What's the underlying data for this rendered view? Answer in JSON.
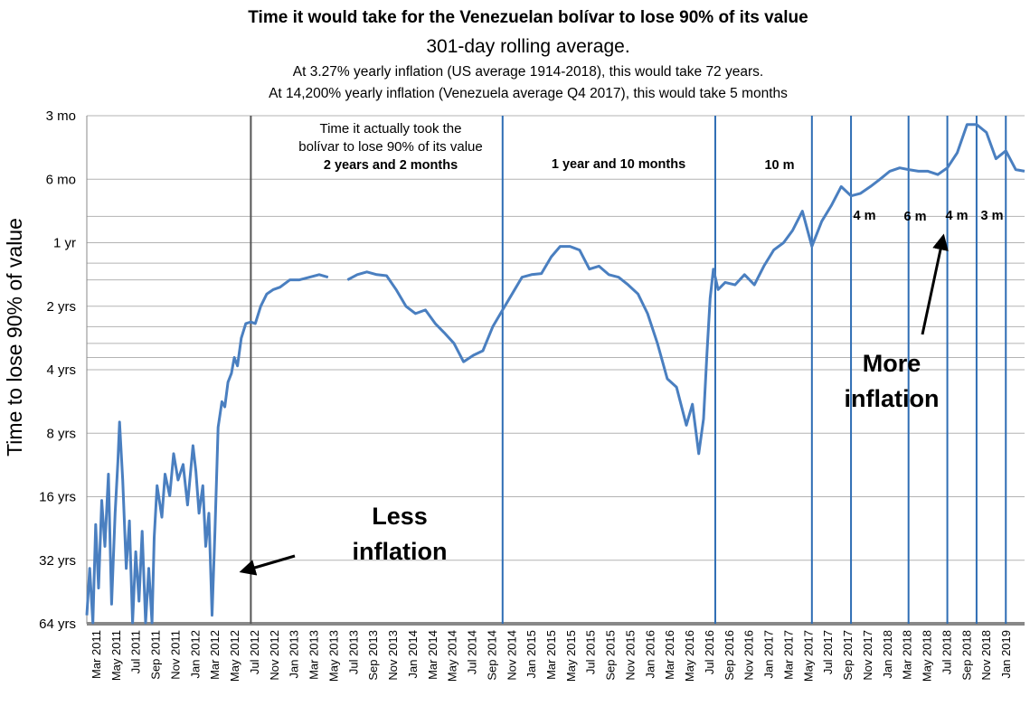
{
  "colors": {
    "series": "#4a7fc0",
    "period_line": "#2e6db4",
    "grid": "#b3b3b3",
    "text": "#000000"
  },
  "chart_data": {
    "type": "line",
    "title": "Time it would take for the Venezuelan bolívar to lose 90% of its value",
    "subtitle": "301-day rolling average.",
    "notes": [
      "At 3.27% yearly inflation (US average 1914-2018), this would take 72 years.",
      "At 14,200% yearly inflation (Venezuela average Q4 2017), this would take 5 months"
    ],
    "ylabel": "Time to lose 90% of value",
    "xlabel": "",
    "y_scale": "log",
    "y_unit": "months",
    "y_inverted": true,
    "ylim": [
      768,
      3
    ],
    "y_ticks": [
      {
        "label": "3 mo",
        "value": 3
      },
      {
        "label": "6 mo",
        "value": 6
      },
      {
        "label": "1 yr",
        "value": 12
      },
      {
        "label": "2 yrs",
        "value": 24
      },
      {
        "label": "4 yrs",
        "value": 48
      },
      {
        "label": "8 yrs",
        "value": 96
      },
      {
        "label": "16 yrs",
        "value": 192
      },
      {
        "label": "32 yrs",
        "value": 384
      },
      {
        "label": "64 yrs",
        "value": 768
      }
    ],
    "y_gridlines": [
      3,
      6,
      9,
      12,
      15,
      18,
      24,
      30,
      36,
      42,
      48,
      96,
      192,
      384,
      768
    ],
    "x_ticks": [
      "Mar 2011",
      "May 2011",
      "Jul 2011",
      "Sep 2011",
      "Nov 2011",
      "Jan 2012",
      "Mar 2012",
      "May 2012",
      "Jul 2012",
      "Nov 2012",
      "Jan 2013",
      "Mar 2013",
      "May 2013",
      "Jul 2013",
      "Sep 2013",
      "Nov 2013",
      "Jan 2014",
      "Mar 2014",
      "May 2014",
      "Jul 2014",
      "Sep 2014",
      "Nov 2014",
      "Jan 2015",
      "Mar 2015",
      "May 2015",
      "Jul 2015",
      "Sep 2015",
      "Nov 2015",
      "Jan 2016",
      "Mar 2016",
      "May 2016",
      "Jul 2016",
      "Sep 2016",
      "Nov 2016",
      "Jan 2017",
      "Mar 2017",
      "May 2017",
      "Jul 2017",
      "Sep 2017",
      "Nov 2017",
      "Jan 2018",
      "Mar 2018",
      "May 2018",
      "Jul 2018",
      "Sep 2018",
      "Nov 2018",
      "Jan 2019"
    ],
    "x_range": [
      "2011-02-01",
      "2019-03-01"
    ],
    "series": [
      {
        "values": [
          [
            "2011-02-01",
            700
          ],
          [
            "2011-02-10",
            420
          ],
          [
            "2011-02-20",
            760
          ],
          [
            "2011-03-01",
            260
          ],
          [
            "2011-03-10",
            520
          ],
          [
            "2011-03-20",
            200
          ],
          [
            "2011-03-30",
            330
          ],
          [
            "2011-04-10",
            150
          ],
          [
            "2011-04-20",
            620
          ],
          [
            "2011-05-01",
            230
          ],
          [
            "2011-05-10",
            130
          ],
          [
            "2011-05-15",
            85
          ],
          [
            "2011-05-25",
            160
          ],
          [
            "2011-06-05",
            420
          ],
          [
            "2011-06-15",
            250
          ],
          [
            "2011-06-25",
            760
          ],
          [
            "2011-07-05",
            350
          ],
          [
            "2011-07-15",
            600
          ],
          [
            "2011-07-25",
            280
          ],
          [
            "2011-08-05",
            760
          ],
          [
            "2011-08-15",
            420
          ],
          [
            "2011-08-25",
            760
          ],
          [
            "2011-09-01",
            300
          ],
          [
            "2011-09-10",
            170
          ],
          [
            "2011-09-25",
            240
          ],
          [
            "2011-10-05",
            150
          ],
          [
            "2011-10-20",
            190
          ],
          [
            "2011-11-01",
            120
          ],
          [
            "2011-11-15",
            160
          ],
          [
            "2011-12-01",
            135
          ],
          [
            "2011-12-15",
            210
          ],
          [
            "2012-01-01",
            110
          ],
          [
            "2012-01-10",
            145
          ],
          [
            "2012-01-20",
            230
          ],
          [
            "2012-02-01",
            170
          ],
          [
            "2012-02-10",
            330
          ],
          [
            "2012-02-20",
            230
          ],
          [
            "2012-03-01",
            700
          ],
          [
            "2012-03-10",
            280
          ],
          [
            "2012-03-20",
            90
          ],
          [
            "2012-04-01",
            68
          ],
          [
            "2012-04-10",
            72
          ],
          [
            "2012-04-20",
            55
          ],
          [
            "2012-05-01",
            50
          ],
          [
            "2012-05-10",
            42
          ],
          [
            "2012-05-20",
            46
          ],
          [
            "2012-06-01",
            34
          ],
          [
            "2012-06-15",
            29
          ],
          [
            "2012-07-01",
            28.5
          ],
          [
            "2012-07-15",
            29
          ],
          [
            "2012-08-01",
            24
          ],
          [
            "2012-08-20",
            21
          ],
          [
            "2012-09-10",
            20
          ],
          [
            "2012-10-01",
            19.5
          ],
          [
            "2012-11-01",
            18
          ],
          [
            "2012-12-01",
            18
          ],
          [
            "2013-01-01",
            17.5
          ],
          [
            "2013-02-01",
            17
          ],
          [
            "2013-03-01",
            17.5
          ],
          [
            "2013-04-01",
            null
          ],
          [
            "2013-05-01",
            18
          ],
          [
            "2013-06-01",
            17
          ],
          [
            "2013-07-01",
            16.5
          ],
          [
            "2013-08-01",
            17
          ],
          [
            "2013-09-01",
            17.2
          ],
          [
            "2013-10-01",
            20
          ],
          [
            "2013-11-01",
            24
          ],
          [
            "2013-12-01",
            26
          ],
          [
            "2014-01-01",
            25
          ],
          [
            "2014-02-01",
            29
          ],
          [
            "2014-03-01",
            32
          ],
          [
            "2014-04-01",
            36
          ],
          [
            "2014-05-01",
            44
          ],
          [
            "2014-06-01",
            41
          ],
          [
            "2014-07-01",
            39
          ],
          [
            "2014-08-01",
            30
          ],
          [
            "2014-09-01",
            25
          ],
          [
            "2014-10-01",
            21
          ],
          [
            "2014-11-01",
            17.5
          ],
          [
            "2014-12-01",
            17
          ],
          [
            "2015-01-01",
            16.8
          ],
          [
            "2015-02-01",
            14
          ],
          [
            "2015-03-01",
            12.5
          ],
          [
            "2015-04-01",
            12.5
          ],
          [
            "2015-05-01",
            13
          ],
          [
            "2015-06-01",
            16
          ],
          [
            "2015-07-01",
            15.5
          ],
          [
            "2015-08-01",
            17
          ],
          [
            "2015-09-01",
            17.5
          ],
          [
            "2015-10-01",
            19
          ],
          [
            "2015-11-01",
            21
          ],
          [
            "2015-12-01",
            26
          ],
          [
            "2016-01-01",
            36
          ],
          [
            "2016-02-01",
            53
          ],
          [
            "2016-03-01",
            58
          ],
          [
            "2016-04-01",
            88
          ],
          [
            "2016-04-20",
            70
          ],
          [
            "2016-05-10",
            120
          ],
          [
            "2016-05-25",
            82
          ],
          [
            "2016-06-05",
            40
          ],
          [
            "2016-06-15",
            22
          ],
          [
            "2016-06-25",
            16
          ],
          [
            "2016-07-10",
            20
          ],
          [
            "2016-08-01",
            18.5
          ],
          [
            "2016-09-01",
            19
          ],
          [
            "2016-10-01",
            17
          ],
          [
            "2016-11-01",
            19
          ],
          [
            "2016-12-01",
            15.5
          ],
          [
            "2017-01-01",
            13
          ],
          [
            "2017-02-01",
            12
          ],
          [
            "2017-03-01",
            10.5
          ],
          [
            "2017-04-01",
            8.5
          ],
          [
            "2017-05-01",
            12.5
          ],
          [
            "2017-06-01",
            9.5
          ],
          [
            "2017-07-01",
            8
          ],
          [
            "2017-08-01",
            6.5
          ],
          [
            "2017-09-01",
            7.2
          ],
          [
            "2017-10-01",
            7
          ],
          [
            "2017-11-01",
            6.5
          ],
          [
            "2017-12-01",
            6
          ],
          [
            "2018-01-01",
            5.5
          ],
          [
            "2018-02-01",
            5.3
          ],
          [
            "2018-03-01",
            5.4
          ],
          [
            "2018-04-01",
            5.5
          ],
          [
            "2018-05-01",
            5.5
          ],
          [
            "2018-06-01",
            5.7
          ],
          [
            "2018-07-01",
            5.3
          ],
          [
            "2018-08-01",
            4.5
          ],
          [
            "2018-09-01",
            3.3
          ],
          [
            "2018-10-01",
            3.3
          ],
          [
            "2018-11-01",
            3.6
          ],
          [
            "2018-12-01",
            4.8
          ],
          [
            "2019-01-01",
            4.4
          ],
          [
            "2019-02-01",
            5.4
          ],
          [
            "2019-03-01",
            5.5
          ]
        ]
      }
    ],
    "period_markers": [
      {
        "date": "2012-07-01",
        "color": "#555555"
      },
      {
        "date": "2014-09-01",
        "color": "#2e6db4"
      },
      {
        "date": "2016-07-01",
        "color": "#2e6db4"
      },
      {
        "date": "2017-05-01",
        "color": "#2e6db4"
      },
      {
        "date": "2017-09-01",
        "color": "#2e6db4"
      },
      {
        "date": "2018-03-01",
        "color": "#2e6db4"
      },
      {
        "date": "2018-07-01",
        "color": "#2e6db4"
      },
      {
        "date": "2018-10-01",
        "color": "#2e6db4"
      },
      {
        "date": "2019-01-01",
        "color": "#2e6db4"
      }
    ],
    "annotations": {
      "took_label_1": "Time it actually took the",
      "took_label_2": "bolívar to lose 90% of its value",
      "periods": [
        "2 years and 2 months",
        "1 year and 10 months",
        "10 m",
        "4 m",
        "6 m",
        "4 m",
        "3 m"
      ],
      "less_inflation_1": "Less",
      "less_inflation_2": "inflation",
      "more_inflation_1": "More",
      "more_inflation_2": "inflation"
    }
  }
}
